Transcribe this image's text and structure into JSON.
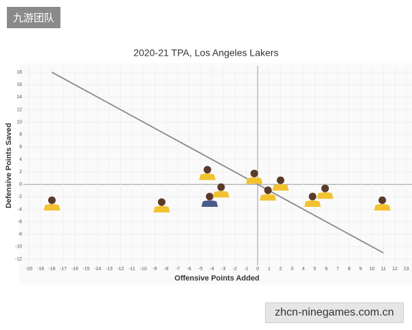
{
  "watermark_top": "九游团队",
  "watermark_bottom": "zhcn-ninegames.com.cn",
  "chart_data": {
    "type": "scatter",
    "title": "2020-21 TPA, Los Angeles Lakers",
    "x_label": "Offensive Points Added",
    "y_label": "Defensive Points Saved",
    "x": [
      -18,
      -8.4,
      -4.4,
      -4.2,
      -3.2,
      -0.3,
      0.9,
      2,
      4.8,
      5.9,
      10.9
    ],
    "values": [
      -3.1,
      -3.4,
      1.8,
      -2.5,
      -1,
      1.2,
      -1.5,
      0.1,
      -2.5,
      -1.2,
      -3.1
    ],
    "colors": [
      "#f2c230",
      "#f2c230",
      "#f2c230",
      "#4a5a8a",
      "#f2c230",
      "#f2c230",
      "#f2c230",
      "#f2c230",
      "#f2c230",
      "#f2c230",
      "#f2c230"
    ],
    "reference_line": {
      "x": [
        -18,
        11
      ],
      "y": [
        18,
        -11
      ],
      "color": "#888888"
    },
    "xlim": [
      -20.5,
      13.5
    ],
    "ylim": [
      -13,
      19
    ],
    "xticks": [
      -20,
      -19,
      -18,
      -17,
      -16,
      -15,
      -14,
      -13,
      -12,
      -11,
      -10,
      -9,
      -8,
      -7,
      -6,
      -5,
      -4,
      -3,
      -2,
      -1,
      0,
      1,
      2,
      3,
      4,
      5,
      6,
      7,
      8,
      9,
      10,
      11,
      12,
      13
    ],
    "yticks": [
      18,
      16,
      14,
      12,
      10,
      8,
      6,
      4,
      2,
      0,
      -2,
      -4,
      -6,
      -8,
      -10,
      -12
    ],
    "grid": true
  }
}
